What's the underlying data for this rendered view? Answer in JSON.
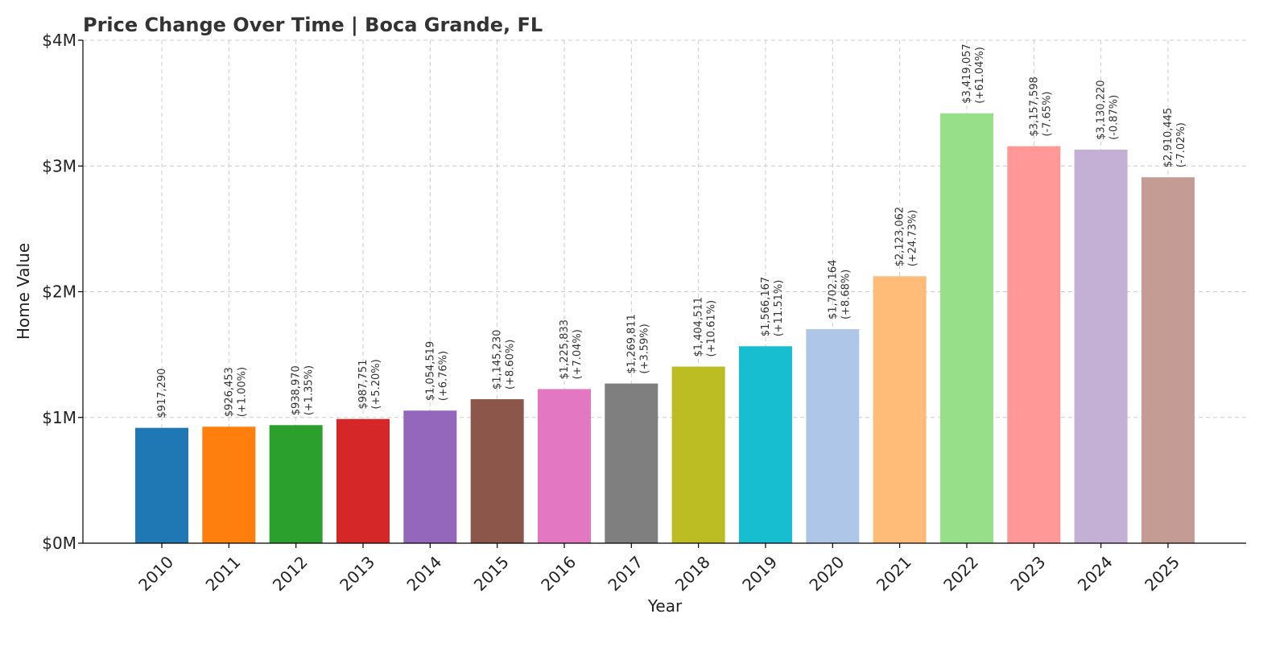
{
  "chart_data": {
    "type": "bar",
    "title": "Price Change Over Time | Boca Grande, FL",
    "xlabel": "Year",
    "ylabel": "Home Value",
    "ylim": [
      0,
      4000000
    ],
    "y_ticks": [
      {
        "value": 0,
        "label": "$0M"
      },
      {
        "value": 1000000,
        "label": "$1M"
      },
      {
        "value": 2000000,
        "label": "$2M"
      },
      {
        "value": 3000000,
        "label": "$3M"
      },
      {
        "value": 4000000,
        "label": "$4M"
      }
    ],
    "grid": true,
    "categories": [
      "2010",
      "2011",
      "2012",
      "2013",
      "2014",
      "2015",
      "2016",
      "2017",
      "2018",
      "2019",
      "2020",
      "2021",
      "2022",
      "2023",
      "2024",
      "2025"
    ],
    "values": [
      917290,
      926453,
      938970,
      987751,
      1054519,
      1145230,
      1225833,
      1269811,
      1404511,
      1566167,
      1702164,
      2123062,
      3419057,
      3157598,
      3130220,
      2910445
    ],
    "value_labels": [
      "$917,290",
      "$926,453",
      "$938,970",
      "$987,751",
      "$1,054,519",
      "$1,145,230",
      "$1,225,833",
      "$1,269,811",
      "$1,404,511",
      "$1,566,167",
      "$1,702,164",
      "$2,123,062",
      "$3,419,057",
      "$3,157,598",
      "$3,130,220",
      "$2,910,445"
    ],
    "change_labels": [
      "",
      "(+1.00%)",
      "(+1.35%)",
      "(+5.20%)",
      "(+6.76%)",
      "(+8.60%)",
      "(+7.04%)",
      "(+3.59%)",
      "(+10.61%)",
      "(+11.51%)",
      "(+8.68%)",
      "(+24.73%)",
      "(+61.04%)",
      "(-7.65%)",
      "(-0.87%)",
      "(-7.02%)"
    ],
    "colors": [
      "#1f77b4",
      "#ff7f0e",
      "#2ca02c",
      "#d62728",
      "#9467bd",
      "#8c564b",
      "#e377c2",
      "#7f7f7f",
      "#bcbd22",
      "#17becf",
      "#aec7e8",
      "#ffbb78",
      "#98df8a",
      "#ff9896",
      "#c5b0d5",
      "#c49c94"
    ]
  }
}
